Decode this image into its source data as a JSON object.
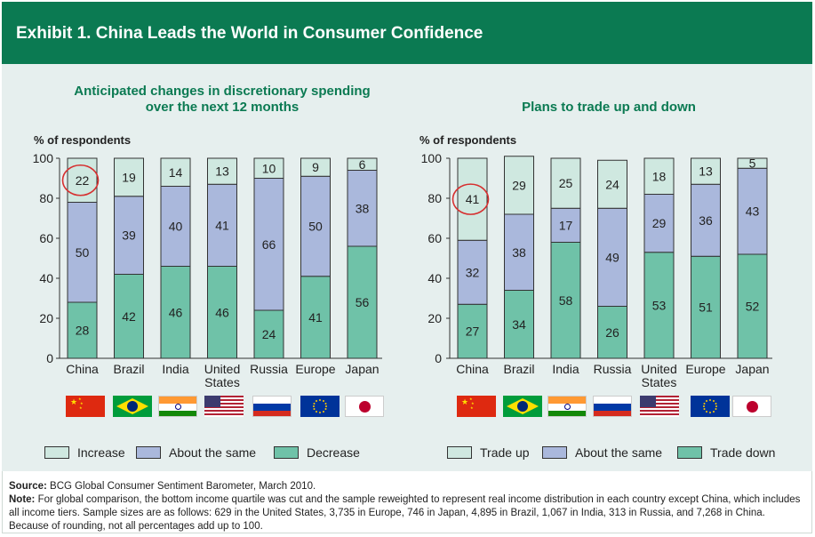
{
  "header": {
    "title": "Exhibit 1. China Leads the World in Consumer Confidence"
  },
  "colors": {
    "header": "#0b7a52",
    "increase": "#cfe8e0",
    "same": "#aab8dc",
    "decrease": "#6fc2a8",
    "circle": "#d62f2f"
  },
  "chart_data": [
    {
      "type": "bar",
      "stacked": true,
      "title": "Anticipated changes in discretionary spending over the next 12 months",
      "ylabel": "% of respondents",
      "ylim": [
        0,
        100
      ],
      "yticks": [
        0,
        20,
        40,
        60,
        80,
        100
      ],
      "categories": [
        "China",
        "Brazil",
        "India",
        "United States",
        "Russia",
        "Europe",
        "Japan"
      ],
      "series": [
        {
          "name": "Decrease",
          "values": [
            28,
            42,
            46,
            46,
            24,
            41,
            56
          ]
        },
        {
          "name": "About the same",
          "values": [
            50,
            39,
            40,
            41,
            66,
            50,
            38
          ]
        },
        {
          "name": "Increase",
          "values": [
            22,
            19,
            14,
            13,
            10,
            9,
            6
          ]
        }
      ],
      "legend": [
        "Increase",
        "About the same",
        "Decrease"
      ],
      "highlight": {
        "category": "China",
        "series": "Increase"
      }
    },
    {
      "type": "bar",
      "stacked": true,
      "title": "Plans to trade up and down",
      "ylabel": "% of respondents",
      "ylim": [
        0,
        100
      ],
      "yticks": [
        0,
        20,
        40,
        60,
        80,
        100
      ],
      "categories": [
        "China",
        "Brazil",
        "India",
        "Russia",
        "United States",
        "Europe",
        "Japan"
      ],
      "series": [
        {
          "name": "Trade down",
          "values": [
            27,
            34,
            58,
            26,
            53,
            51,
            52
          ]
        },
        {
          "name": "About the same",
          "values": [
            32,
            38,
            17,
            49,
            29,
            36,
            43
          ]
        },
        {
          "name": "Trade up",
          "values": [
            41,
            29,
            25,
            24,
            18,
            13,
            5
          ]
        }
      ],
      "legend": [
        "Trade up",
        "About the same",
        "Trade down"
      ],
      "highlight": {
        "category": "China",
        "series": "Trade up"
      }
    }
  ],
  "footer": {
    "source_label": "Source:",
    "source_text": " BCG Global Consumer Sentiment Barometer, March 2010.",
    "note_label": "Note:",
    "note_text": " For global comparison, the bottom income quartile was cut and the sample reweighted to represent real income distribution in each country except China, which includes all income tiers. Sample sizes are as follows: 629 in the United States, 3,735 in Europe, 746 in Japan, 4,895 in Brazil, 1,067 in India, 313 in Russia, and 7,268 in China. Because of rounding, not all percentages add up to 100."
  }
}
